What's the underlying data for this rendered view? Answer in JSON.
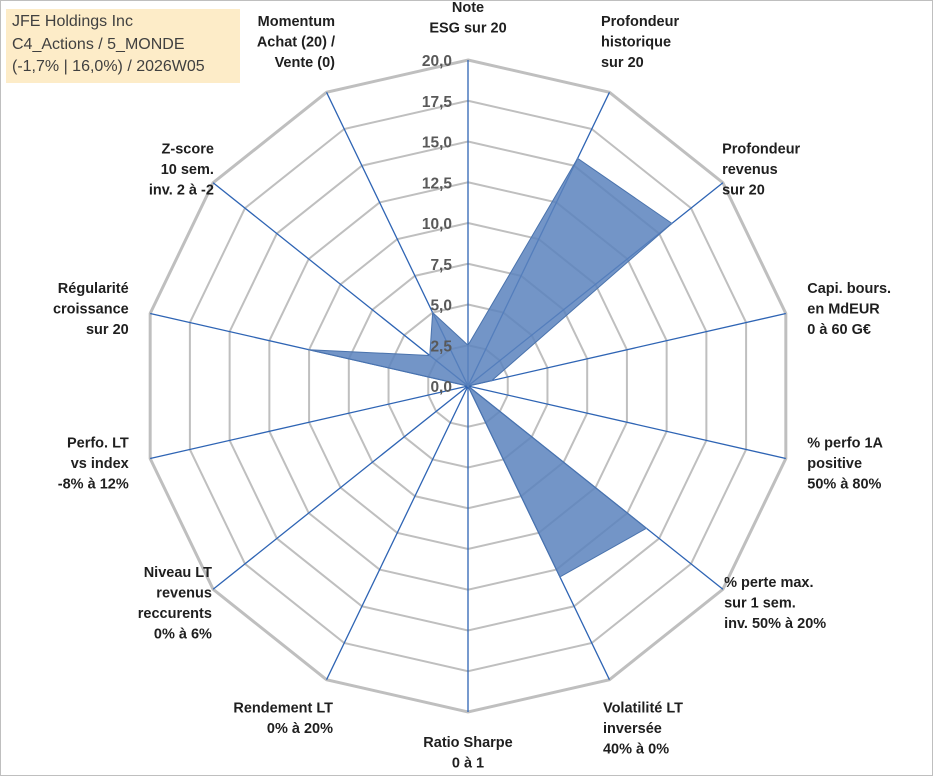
{
  "info": {
    "line1": "JFE Holdings Inc",
    "line2": "C4_Actions / 5_MONDE",
    "line3": "(-1,7% | 16,0%) / 2026W05"
  },
  "colors": {
    "fill": "#5b83bd",
    "axis": "#2e64b4",
    "grid": "#bfbfbf",
    "info_bg": "#fdecc8"
  },
  "chart_data": {
    "type": "radar",
    "range": [
      0,
      20
    ],
    "tick_step": 2.5,
    "tick_labels": [
      "0,0",
      "2,5",
      "5,0",
      "7,5",
      "10,0",
      "12,5",
      "15,0",
      "17,5",
      "20,0"
    ],
    "axes": [
      {
        "label": [
          "Note",
          "ESG sur 20"
        ],
        "value": 2.5
      },
      {
        "label": [
          "Profondeur",
          "historique",
          "sur 20"
        ],
        "value": 15.5
      },
      {
        "label": [
          "Profondeur",
          "revenus",
          "sur 20"
        ],
        "value": 16
      },
      {
        "label": [
          "Capi. bours.",
          "en MdEUR",
          "0 à 60 G€"
        ],
        "value": 1.5
      },
      {
        "label": [
          "% perfo 1A",
          "positive",
          "50% à 80%"
        ],
        "value": 0
      },
      {
        "label": [
          "% perte max.",
          "sur 1 sem.",
          "inv. 50% à 20%"
        ],
        "value": 14
      },
      {
        "label": [
          "Volatilité LT",
          "inversée",
          "40% à 0%"
        ],
        "value": 13
      },
      {
        "label": [
          "Ratio Sharpe",
          "0 à 1"
        ],
        "value": 0
      },
      {
        "label": [
          "Rendement LT",
          "0% à 20%"
        ],
        "value": 0
      },
      {
        "label": [
          "Niveau LT",
          "revenus",
          "reccurents",
          "0% à 6%"
        ],
        "value": 0
      },
      {
        "label": [
          "Perfo. LT",
          "vs index",
          "-8% à 12%"
        ],
        "value": 0
      },
      {
        "label": [
          "Régularité",
          "croissance",
          "sur 20"
        ],
        "value": 10
      },
      {
        "label": [
          "Z-score",
          "10 sem.",
          "inv. 2 à -2"
        ],
        "value": 3
      },
      {
        "label": [
          "Momentum",
          "Achat (20) /",
          "Vente (0)"
        ],
        "value": 5
      }
    ]
  }
}
